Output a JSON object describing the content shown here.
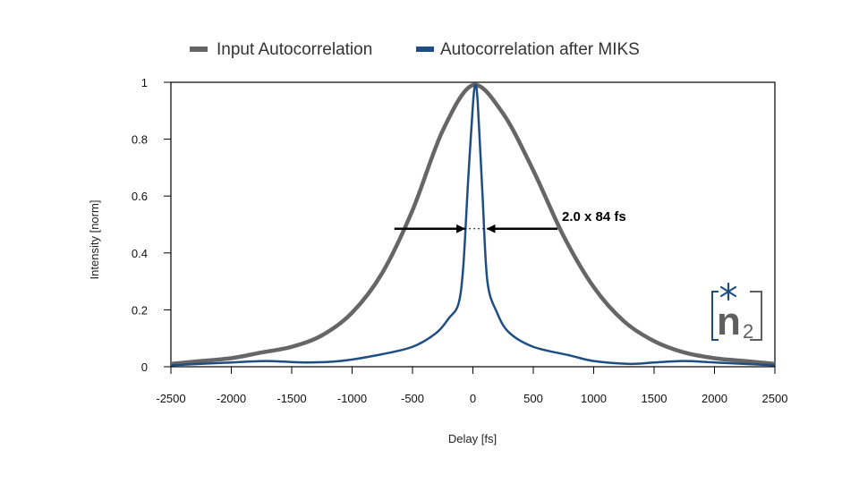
{
  "chart_data": {
    "type": "line",
    "title": "",
    "xlabel": "Delay [fs]",
    "ylabel": "Intensity [norm]",
    "xlim": [
      -2500,
      2500
    ],
    "ylim": [
      0,
      1
    ],
    "xticks": [
      -2500,
      -2000,
      -1500,
      -1000,
      -500,
      0,
      500,
      1000,
      1500,
      2000,
      2500
    ],
    "yticks": [
      0,
      0.2,
      0.4,
      0.6,
      0.8,
      1
    ],
    "ytick_labels": [
      "0",
      "0.2",
      "0.4",
      "0.6",
      "0.8",
      "1"
    ],
    "grid": false,
    "legend_position": "top-center",
    "series": [
      {
        "name": "Input Autocorrelation",
        "color": "#666666",
        "x": [
          -2500,
          -2250,
          -2000,
          -1750,
          -1500,
          -1250,
          -1000,
          -750,
          -500,
          -250,
          0,
          250,
          500,
          750,
          1000,
          1250,
          1500,
          1750,
          2000,
          2250,
          2500
        ],
        "y": [
          0.01,
          0.02,
          0.03,
          0.05,
          0.07,
          0.11,
          0.19,
          0.33,
          0.55,
          0.83,
          0.99,
          0.89,
          0.69,
          0.46,
          0.28,
          0.16,
          0.09,
          0.05,
          0.03,
          0.02,
          0.01
        ]
      },
      {
        "name": "Autocorrelation after MIKS",
        "color": "#1f4e84",
        "x": [
          -2500,
          -2000,
          -1700,
          -1400,
          -1100,
          -800,
          -500,
          -300,
          -200,
          -120,
          -80,
          -40,
          0,
          20,
          40,
          80,
          120,
          200,
          300,
          500,
          800,
          1000,
          1300,
          1500,
          1750,
          2000,
          2500
        ],
        "y": [
          0.005,
          0.015,
          0.02,
          0.015,
          0.02,
          0.04,
          0.07,
          0.12,
          0.17,
          0.22,
          0.35,
          0.65,
          0.92,
          0.99,
          0.93,
          0.6,
          0.3,
          0.19,
          0.12,
          0.07,
          0.04,
          0.02,
          0.01,
          0.015,
          0.02,
          0.015,
          0.005
        ]
      }
    ],
    "annotations": [
      {
        "text": "2.0 x 84 fs",
        "type": "fwhm-arrows",
        "y": 0.485,
        "x_from": -650,
        "x_to": 700,
        "x_inner_left": -70,
        "x_inner_right": 120
      }
    ]
  },
  "logo": {
    "main": "n",
    "sub": "2",
    "star": "*"
  }
}
